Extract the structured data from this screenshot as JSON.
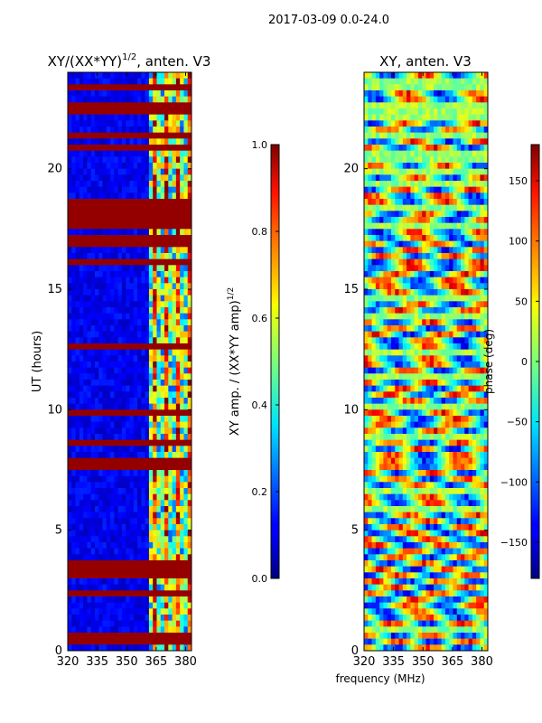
{
  "figure_title": "2017-03-09 0.0-24.0",
  "colors": {
    "low": "#00007f",
    "mid": "#7fff7f",
    "high": "#7f0000",
    "axis": "#000000"
  },
  "chart_data": [
    {
      "type": "heatmap",
      "title_main": "XY/(XX*YY)",
      "title_exp": "1/2",
      "title_tail": ", anten. V3",
      "xlabel": "",
      "ylabel": "UT (hours)",
      "x_ticks": [
        320,
        335,
        350,
        365,
        380
      ],
      "y_ticks": [
        0,
        5,
        10,
        15,
        20
      ],
      "xlim": [
        320,
        383
      ],
      "ylim": [
        0,
        24
      ],
      "colorbar": {
        "label_main": "XY amp. / (XX*YY amp)",
        "label_exp": "1/2",
        "range": [
          0.0,
          1.0
        ],
        "ticks": [
          "0.0",
          "0.2",
          "0.4",
          "0.6",
          "0.8",
          "1.0"
        ]
      }
    },
    {
      "type": "heatmap",
      "title_main": "XY, anten. V3",
      "xlabel": "frequency (MHz)",
      "ylabel": "",
      "x_ticks": [
        320,
        335,
        350,
        365,
        380
      ],
      "y_ticks": [
        0,
        5,
        10,
        15,
        20
      ],
      "xlim": [
        320,
        383
      ],
      "ylim": [
        0,
        24
      ],
      "colorbar": {
        "label_main": "phase (deg)",
        "range": [
          -180,
          180
        ],
        "ticks": [
          "−150",
          "−100",
          "−50",
          "0",
          "50",
          "100",
          "150"
        ]
      }
    }
  ]
}
